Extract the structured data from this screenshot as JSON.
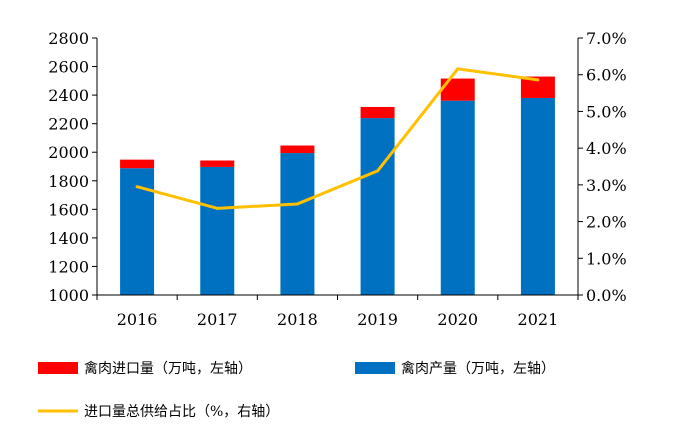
{
  "chart_data": {
    "type": "bar",
    "categories": [
      "2016",
      "2017",
      "2018",
      "2019",
      "2020",
      "2021"
    ],
    "series": [
      {
        "name": "禽肉产量（万吨，左轴）",
        "kind": "bar",
        "axis": "left",
        "color": "#0070C0",
        "values": [
          1888,
          1897,
          1994,
          2239,
          2361,
          2380
        ]
      },
      {
        "name": "禽肉进口量（万吨，左轴）",
        "kind": "bar-stack",
        "axis": "left",
        "color": "#FF0000",
        "values": [
          60,
          45,
          53,
          78,
          155,
          150
        ]
      },
      {
        "name": "进口量总供给占比（%，右轴）",
        "kind": "line",
        "axis": "right",
        "color": "#FFC000",
        "values": [
          2.95,
          2.36,
          2.48,
          3.38,
          6.16,
          5.86
        ]
      }
    ],
    "y_left": {
      "min": 1000,
      "max": 2800,
      "ticks": [
        "1000",
        "1200",
        "1400",
        "1600",
        "1800",
        "2000",
        "2200",
        "2400",
        "2600",
        "2800"
      ]
    },
    "y_right": {
      "min": 0,
      "max": 7,
      "ticks": [
        "0.0%",
        "1.0%",
        "2.0%",
        "3.0%",
        "4.0%",
        "5.0%",
        "6.0%",
        "7.0%"
      ]
    },
    "legend_position": "bottom",
    "grid": false
  }
}
